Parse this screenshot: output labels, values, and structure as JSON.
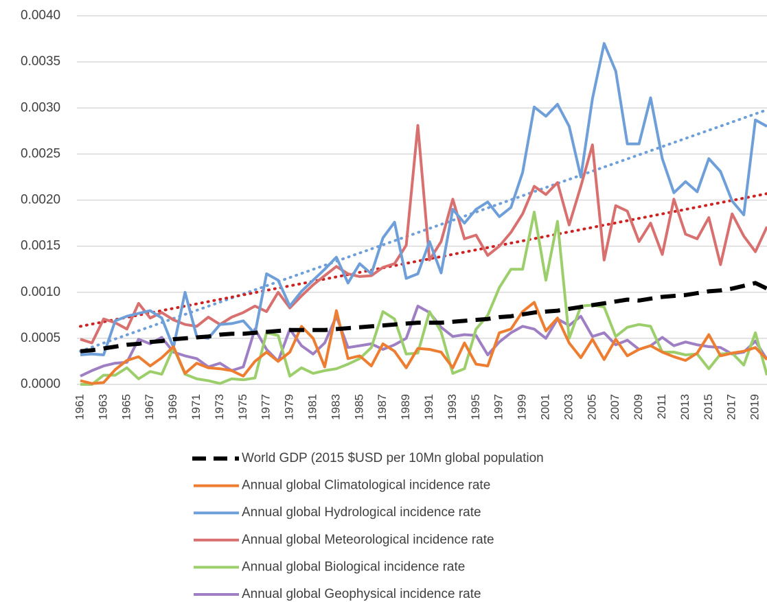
{
  "chart_data": {
    "type": "line",
    "categories": [
      "1961",
      null,
      "1963",
      null,
      "1965",
      null,
      "1967",
      null,
      "1969",
      null,
      "1971",
      null,
      "1973",
      null,
      "1975",
      null,
      "1977",
      null,
      "1979",
      null,
      "1981",
      null,
      "1983",
      null,
      "1985",
      null,
      "1987",
      null,
      "1989",
      null,
      "1991",
      null,
      "1993",
      null,
      "1995",
      null,
      "1997",
      null,
      "1999",
      null,
      "2001",
      null,
      "2003",
      null,
      "2005",
      null,
      "2007",
      null,
      "2009",
      null,
      "2011",
      null,
      "2013",
      null,
      "2015",
      null,
      "2017",
      null,
      "2019",
      null
    ],
    "ylim": [
      0,
      0.004
    ],
    "yticks": [
      {
        "value": 0,
        "label": "0.0000"
      },
      {
        "value": 0.0005,
        "label": "0.0005"
      },
      {
        "value": 0.001,
        "label": "0.0010"
      },
      {
        "value": 0.0015,
        "label": "0.0015"
      },
      {
        "value": 0.002,
        "label": "0.0020"
      },
      {
        "value": 0.0025,
        "label": "0.0025"
      },
      {
        "value": 0.003,
        "label": "0.0030"
      },
      {
        "value": 0.0035,
        "label": "0.0035"
      },
      {
        "value": 0.004,
        "label": "0.0040"
      }
    ],
    "grid": true,
    "legend": "bottom",
    "series": [
      {
        "name": "World GDP (2015 $USD per 10Mn global population",
        "color": "#000000",
        "dashed": true,
        "values": [
          0.00036,
          0.00037,
          0.00039,
          0.00041,
          0.00043,
          0.00044,
          0.00046,
          0.00047,
          0.00049,
          0.0005,
          0.00051,
          0.00052,
          0.00054,
          0.00055,
          0.00055,
          0.00056,
          0.00057,
          0.00058,
          0.00059,
          0.00059,
          0.00059,
          0.00059,
          0.0006,
          0.00061,
          0.00062,
          0.00063,
          0.00064,
          0.00065,
          0.00066,
          0.00067,
          0.00067,
          0.00067,
          0.00068,
          0.00069,
          0.0007,
          0.00071,
          0.00073,
          0.00074,
          0.00076,
          0.00078,
          0.00079,
          0.0008,
          0.00082,
          0.00084,
          0.00086,
          0.00088,
          0.0009,
          0.00092,
          0.00091,
          0.00093,
          0.00095,
          0.00096,
          0.00097,
          0.00099,
          0.00101,
          0.00102,
          0.00104,
          0.00107,
          0.0011,
          0.00104
        ]
      },
      {
        "name": "Annual global Climatological incidence rate",
        "color": "#ed7d31",
        "values": [
          4e-05,
          1e-05,
          2e-05,
          0.00016,
          0.00026,
          0.0003,
          0.0002,
          0.00029,
          0.00041,
          0.00012,
          0.00023,
          0.00018,
          0.00017,
          0.00015,
          9e-05,
          0.00025,
          0.00035,
          0.00025,
          0.00035,
          0.00063,
          0.0005,
          0.00019,
          0.0008,
          0.00028,
          0.00031,
          0.0002,
          0.00044,
          0.00036,
          0.00018,
          0.00039,
          0.00038,
          0.00035,
          0.00018,
          0.00045,
          0.00022,
          0.0002,
          0.00056,
          0.0006,
          0.00079,
          0.00089,
          0.00058,
          0.00072,
          0.00045,
          0.00029,
          0.00049,
          0.00027,
          0.00049,
          0.00031,
          0.00038,
          0.00042,
          0.00035,
          0.0003,
          0.00026,
          0.00034,
          0.00054,
          0.00031,
          0.00034,
          0.00036,
          0.0004,
          0.00027
        ]
      },
      {
        "name": "Annual global Hydrological incidence rate",
        "color": "#6f9fd8",
        "values": [
          0.00032,
          0.00033,
          0.00032,
          0.00069,
          0.00074,
          0.00077,
          0.0008,
          0.00072,
          0.0004,
          0.001,
          0.00052,
          0.0005,
          0.00065,
          0.00066,
          0.00069,
          0.00055,
          0.0012,
          0.00113,
          0.00085,
          0.00101,
          0.00113,
          0.00125,
          0.00138,
          0.0011,
          0.00131,
          0.0012,
          0.00159,
          0.00176,
          0.00115,
          0.0012,
          0.00155,
          0.00121,
          0.0019,
          0.00175,
          0.0019,
          0.00198,
          0.00182,
          0.00192,
          0.0023,
          0.00301,
          0.00291,
          0.00304,
          0.0028,
          0.00225,
          0.0031,
          0.0037,
          0.0034,
          0.00261,
          0.00261,
          0.00311,
          0.00245,
          0.00208,
          0.0022,
          0.00209,
          0.00245,
          0.00231,
          0.00199,
          0.00184,
          0.00287,
          0.0028
        ]
      },
      {
        "name": "Annual global Meteorological incidence rate",
        "color": "#d97070",
        "values": [
          0.00049,
          0.00045,
          0.00071,
          0.00067,
          0.0006,
          0.00088,
          0.00072,
          0.00078,
          0.0007,
          0.00065,
          0.00063,
          0.00073,
          0.00065,
          0.00073,
          0.00078,
          0.00085,
          0.00079,
          0.001,
          0.00083,
          0.00096,
          0.00108,
          0.00118,
          0.00128,
          0.0012,
          0.00117,
          0.00118,
          0.00127,
          0.00131,
          0.00151,
          0.00281,
          0.00135,
          0.00155,
          0.00201,
          0.00158,
          0.00162,
          0.0014,
          0.0015,
          0.00165,
          0.00185,
          0.00215,
          0.00206,
          0.00219,
          0.00173,
          0.00215,
          0.0026,
          0.00135,
          0.00194,
          0.00188,
          0.00155,
          0.00175,
          0.00141,
          0.00201,
          0.00163,
          0.00158,
          0.00181,
          0.0013,
          0.00185,
          0.00161,
          0.00144,
          0.00171
        ]
      },
      {
        "name": "Annual global Biological incidence rate",
        "color": "#9ccf6c",
        "values": [
          0,
          0,
          0.0001,
          0.0001,
          0.00018,
          6e-05,
          0.00014,
          0.00011,
          0.0004,
          0.00011,
          6e-05,
          4e-05,
          1e-05,
          6e-05,
          5e-05,
          7e-05,
          0.00056,
          0.00053,
          9e-05,
          0.00018,
          0.00012,
          0.00015,
          0.00017,
          0.00022,
          0.00028,
          0.0004,
          0.00079,
          0.00071,
          0.00033,
          0.00034,
          0.00079,
          0.00057,
          0.00012,
          0.00017,
          0.0006,
          0.00075,
          0.00105,
          0.00125,
          0.00125,
          0.00187,
          0.00113,
          0.00177,
          0.0005,
          0.00085,
          0.00086,
          0.00084,
          0.00052,
          0.00062,
          0.00065,
          0.00063,
          0.00035,
          0.00035,
          0.00032,
          0.00033,
          0.00017,
          0.00033,
          0.00034,
          0.00021,
          0.00056,
          0.0001
        ]
      },
      {
        "name": "Annual global Geophysical incidence rate",
        "color": "#9f7fc4",
        "values": [
          9e-05,
          0.00015,
          0.0002,
          0.00023,
          0.00024,
          0.00049,
          0.00044,
          0.00051,
          0.00035,
          0.00031,
          0.00028,
          0.00019,
          0.00023,
          0.00015,
          0.00019,
          0.0006,
          0.00038,
          0.00025,
          0.0006,
          0.00042,
          0.00033,
          0.00045,
          0.00074,
          0.0004,
          0.00042,
          0.00044,
          0.00038,
          0.00043,
          0.0005,
          0.00085,
          0.00078,
          0.00062,
          0.00052,
          0.00054,
          0.00053,
          0.00032,
          0.00046,
          0.00056,
          0.00063,
          0.0006,
          0.0005,
          0.00071,
          0.00064,
          0.00074,
          0.00052,
          0.00056,
          0.00043,
          0.00048,
          0.00038,
          0.00042,
          0.00051,
          0.00042,
          0.00046,
          0.00043,
          0.00041,
          0.0004,
          0.00033,
          0.00035,
          0.00047,
          0.00027
        ]
      }
    ],
    "trendlines": [
      {
        "color": "#6f9fd8",
        "values": [
          0.00036,
          0.00298
        ]
      },
      {
        "color": "#cc2222",
        "values": [
          0.00063,
          0.00207
        ]
      }
    ]
  }
}
